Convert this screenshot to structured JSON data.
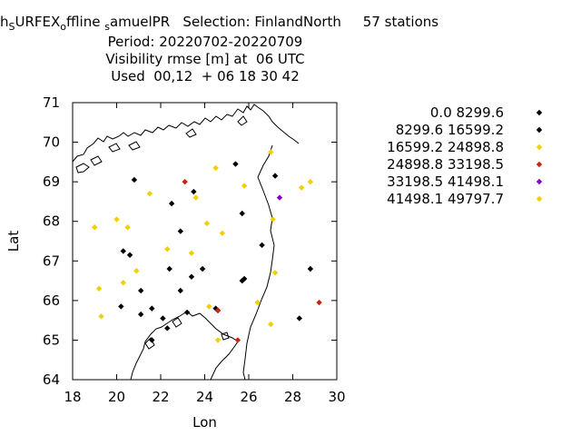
{
  "title": {
    "line1_prefix": "h",
    "line1_sub1": "S",
    "line1_mid1": "URFEX",
    "line1_sub2": "o",
    "line1_mid2": "ffline",
    "line1_sub3": "s",
    "line1_rest": "amuelPR   Selection: FinlandNorth     57 stations",
    "line2": "Period: 20220702-20220709",
    "line3": "Visibility rmse [m] at  06 UTC",
    "line4": "Used  00,12  + 06 18 30 42"
  },
  "chart_data": {
    "type": "scatter",
    "xlabel": "Lon",
    "ylabel": "Lat",
    "xlim": [
      18,
      30
    ],
    "ylim": [
      64,
      71
    ],
    "xticks": [
      "18",
      "20",
      "22",
      "24",
      "26",
      "28",
      "30"
    ],
    "yticks": [
      "64",
      "65",
      "66",
      "67",
      "68",
      "69",
      "70",
      "71"
    ],
    "grid": false,
    "legend_position": "right",
    "series": [
      {
        "name": "0.0 8299.6",
        "color": "#000000",
        "points": [
          [
            20.8,
            69.05
          ],
          [
            22.5,
            68.45
          ],
          [
            25.4,
            69.45
          ],
          [
            27.2,
            69.15
          ],
          [
            23.5,
            68.75
          ],
          [
            25.7,
            68.2
          ],
          [
            20.6,
            67.15
          ],
          [
            20.3,
            67.25
          ],
          [
            22.9,
            67.75
          ],
          [
            26.6,
            67.4
          ],
          [
            22.4,
            66.8
          ],
          [
            23.9,
            66.8
          ],
          [
            23.4,
            66.6
          ],
          [
            21.1,
            66.25
          ],
          [
            22.9,
            66.25
          ],
          [
            25.8,
            66.55
          ],
          [
            25.7,
            66.5
          ],
          [
            28.8,
            66.8
          ],
          [
            20.2,
            65.85
          ],
          [
            21.1,
            65.65
          ],
          [
            21.6,
            65.8
          ],
          [
            22.1,
            65.55
          ],
          [
            22.3,
            65.3
          ],
          [
            23.2,
            65.7
          ],
          [
            24.5,
            65.8
          ],
          [
            24.6,
            65.75
          ],
          [
            28.3,
            65.55
          ],
          [
            21.6,
            65.0
          ]
        ]
      },
      {
        "name": "8299.6 16599.2",
        "color": "#000000",
        "points": []
      },
      {
        "name": "16599.2 24898.8",
        "color": "#f0d000",
        "points": [
          [
            27.0,
            69.75
          ],
          [
            24.5,
            69.35
          ],
          [
            25.8,
            68.9
          ],
          [
            28.8,
            69.0
          ],
          [
            28.4,
            68.85
          ],
          [
            21.5,
            68.7
          ],
          [
            23.6,
            68.6
          ],
          [
            20.0,
            68.05
          ],
          [
            20.5,
            67.85
          ],
          [
            19.0,
            67.85
          ],
          [
            24.1,
            67.95
          ],
          [
            24.8,
            67.7
          ],
          [
            27.1,
            68.05
          ],
          [
            22.3,
            67.3
          ],
          [
            23.4,
            67.2
          ],
          [
            20.9,
            66.75
          ],
          [
            27.2,
            66.7
          ],
          [
            20.3,
            66.45
          ],
          [
            19.2,
            66.3
          ],
          [
            26.4,
            65.95
          ],
          [
            24.2,
            65.85
          ],
          [
            19.3,
            65.6
          ],
          [
            27.0,
            65.4
          ],
          [
            24.6,
            65.0
          ]
        ]
      },
      {
        "name": "24898.8 33198.5",
        "color": "#d02010",
        "points": [
          [
            23.1,
            69.0
          ],
          [
            29.2,
            65.95
          ],
          [
            24.6,
            65.75
          ],
          [
            25.5,
            65.0
          ]
        ]
      },
      {
        "name": "33198.5 41498.1",
        "color": "#8a00c8",
        "points": [
          [
            27.4,
            68.6
          ]
        ]
      },
      {
        "name": "41498.1 49797.7",
        "color": "#f0d000",
        "points": []
      }
    ]
  }
}
